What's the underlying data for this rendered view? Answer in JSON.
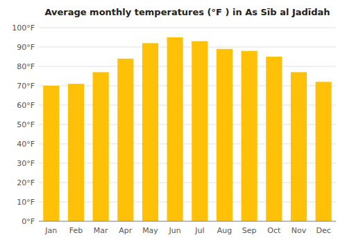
{
  "chart_data": {
    "type": "bar",
    "title": "Average monthly temperatures (°F ) in As Sīb al Jadīdah",
    "categories": [
      "Jan",
      "Feb",
      "Mar",
      "Apr",
      "May",
      "Jun",
      "Jul",
      "Aug",
      "Sep",
      "Oct",
      "Nov",
      "Dec"
    ],
    "values": [
      70,
      71,
      77,
      84,
      92,
      95,
      93,
      89,
      88,
      85,
      77,
      72
    ],
    "color": "#FFC107",
    "ylim": [
      0,
      100
    ],
    "yticks": [
      {
        "value": 0,
        "label": "0°F"
      },
      {
        "value": 10,
        "label": "10°F"
      },
      {
        "value": 20,
        "label": "20°F"
      },
      {
        "value": 30,
        "label": "30°F"
      },
      {
        "value": 40,
        "label": "40°F"
      },
      {
        "value": 50,
        "label": "50°F"
      },
      {
        "value": 60,
        "label": "60°F"
      },
      {
        "value": 70,
        "label": "70°F"
      },
      {
        "value": 80,
        "label": "80°F"
      },
      {
        "value": 90,
        "label": "90°F"
      },
      {
        "value": 100,
        "label": "100°F"
      }
    ],
    "grid": true
  }
}
